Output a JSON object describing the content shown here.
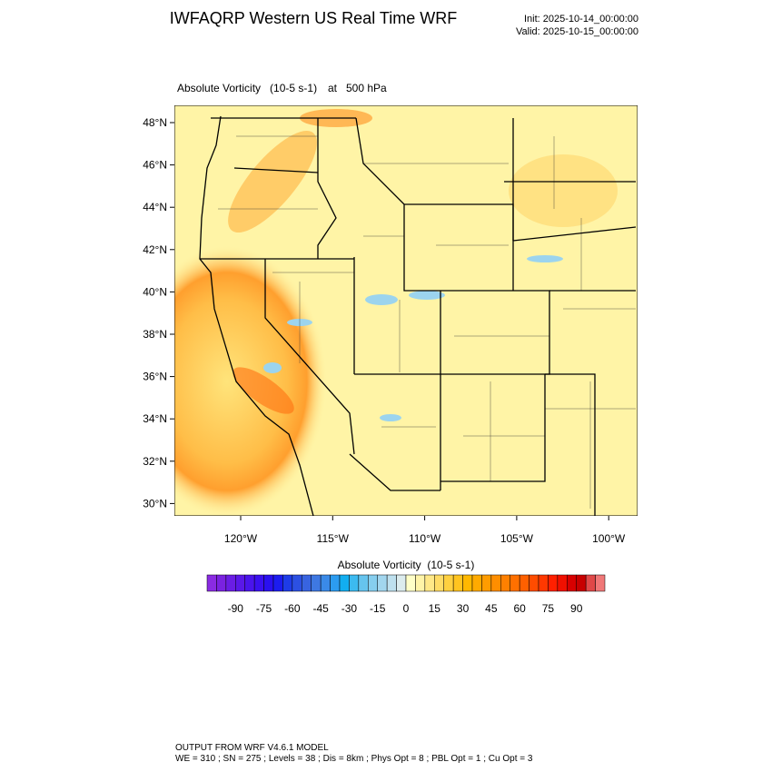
{
  "header": {
    "title": "IWFAQRP Western US Real Time WRF",
    "init": "Init: 2025-10-14_00:00:00",
    "valid": "Valid: 2025-10-15_00:00:00"
  },
  "plot": {
    "field": "Absolute Vorticity   (10-5 s-1)",
    "level": "at   500 hPa",
    "lat_labels": [
      "48°N",
      "46°N",
      "44°N",
      "42°N",
      "40°N",
      "38°N",
      "36°N",
      "34°N",
      "32°N",
      "30°N"
    ],
    "lon_labels": [
      "120°W",
      "115°W",
      "110°W",
      "105°W",
      "100°W"
    ]
  },
  "colorbar": {
    "title": "Absolute Vorticity  (10-5 s-1)",
    "labels": [
      -90,
      -75,
      -60,
      -45,
      -30,
      -15,
      0,
      15,
      30,
      45,
      60,
      75,
      90
    ],
    "colors": [
      "#8a2be2",
      "#7a22e0",
      "#6a1de4",
      "#5a18e8",
      "#4a14ec",
      "#3a10f0",
      "#2a10f0",
      "#1c1cf0",
      "#1e3ce8",
      "#2c50e2",
      "#3864e0",
      "#3e78e2",
      "#3a8ae8",
      "#2c9cf0",
      "#12aef0",
      "#3cbaf0",
      "#66c4ee",
      "#86ceee",
      "#a2d6ee",
      "#bee0ee",
      "#dcecee",
      "#ffffc8",
      "#fff4a8",
      "#ffe888",
      "#ffdc66",
      "#ffd040",
      "#ffc420",
      "#ffb800",
      "#ffaa00",
      "#ff9c00",
      "#ff8e00",
      "#ff8000",
      "#ff7000",
      "#ff6000",
      "#ff4c00",
      "#ff3800",
      "#ff2000",
      "#f01000",
      "#d80000",
      "#c80000",
      "#e04848",
      "#f07878"
    ]
  },
  "footer": {
    "line1": "OUTPUT FROM WRF V4.6.1 MODEL",
    "line2": "WE = 310 ; SN = 275 ; Levels = 38 ; Dis = 8km ; Phys Opt = 8 ; PBL Opt = 1 ; Cu Opt = 3"
  }
}
